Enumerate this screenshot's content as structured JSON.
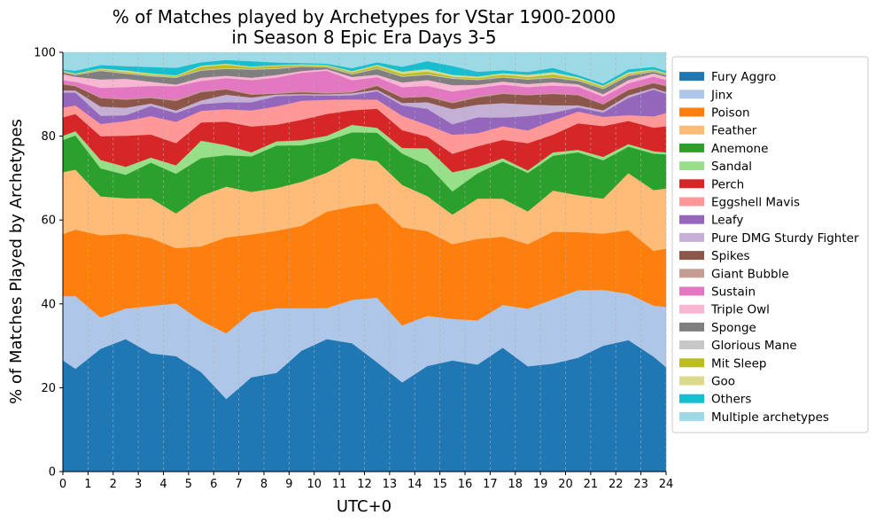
{
  "chart_data": {
    "type": "area",
    "stacked": true,
    "title": [
      "% of Matches played by Archetypes for VStar 1900-2000",
      "in Season 8 Epic Era Days 3-5"
    ],
    "xlabel": "UTC+0",
    "ylabel": "% of Matches Played by Archetypes",
    "xlim": [
      0,
      24
    ],
    "ylim": [
      0,
      100
    ],
    "x_ticks": [
      0,
      1,
      2,
      3,
      4,
      5,
      6,
      7,
      8,
      9,
      10,
      11,
      12,
      13,
      14,
      15,
      16,
      17,
      18,
      19,
      20,
      21,
      22,
      23,
      24
    ],
    "y_ticks": [
      0,
      20,
      40,
      60,
      80,
      100
    ],
    "grid": "vertical dashed",
    "legend_position": "right",
    "x": [
      0,
      0.5,
      1.5,
      2.5,
      3.5,
      4.5,
      5.5,
      6.5,
      7.5,
      8.5,
      9.5,
      10.5,
      11.5,
      12.5,
      13.5,
      14.5,
      15.5,
      16.5,
      17.5,
      18.5,
      19.5,
      20.5,
      21.5,
      22.5,
      23.5,
      24
    ],
    "series": [
      {
        "name": "Fury Aggro",
        "color": "#1f77b4",
        "values": [
          26,
          24,
          29,
          31.6,
          28.2,
          27.6,
          24,
          18,
          23.4,
          23.2,
          28.5,
          31.6,
          30.8,
          26.4,
          22.2,
          25.2,
          27.8,
          27,
          31,
          26.3,
          25.7,
          27.1,
          29.5,
          31.8,
          28.4,
          26
        ]
      },
      {
        "name": "Jinx",
        "color": "#aec7e8",
        "values": [
          15,
          17,
          7.4,
          7.3,
          11.3,
          12.6,
          12.4,
          16.3,
          16.1,
          15.2,
          10,
          7.4,
          10.4,
          15.6,
          14.2,
          12,
          10.4,
          11.2,
          10.7,
          14.4,
          15.3,
          16.1,
          13.1,
          11.2,
          12.6,
          15
        ]
      },
      {
        "name": "Poison",
        "color": "#ff7f0e",
        "values": [
          14.5,
          15.5,
          19.4,
          17.8,
          16.2,
          13.2,
          17.9,
          23.8,
          19.3,
          18.2,
          19.4,
          23,
          22.4,
          22.8,
          24.4,
          20.2,
          18.7,
          20.5,
          17.1,
          16.1,
          16.1,
          13.8,
          13.2,
          15.4,
          13.5,
          14.5
        ]
      },
      {
        "name": "Feather",
        "color": "#ffbb78",
        "values": [
          14.5,
          14,
          9.2,
          8.5,
          9.5,
          8.3,
          12.2,
          12.6,
          10.6,
          10,
          10.4,
          9.3,
          11.6,
          10.2,
          10.6,
          8.4,
          7.4,
          10.2,
          9.5,
          8.2,
          9.8,
          8.8,
          8.2,
          13.8,
          15,
          15
        ]
      },
      {
        "name": "Anemone",
        "color": "#2ca02c",
        "values": [
          7.5,
          8,
          6.6,
          5.6,
          8.5,
          9.5,
          9.1,
          7.8,
          8.8,
          10,
          8.6,
          7.6,
          6.2,
          6.8,
          7.8,
          7.4,
          5.8,
          6.4,
          9.3,
          9.6,
          8.3,
          10.2,
          9,
          6.4,
          9,
          8.5
        ]
      },
      {
        "name": "Sandal",
        "color": "#98df8a",
        "values": [
          1,
          1,
          2,
          1.9,
          1.2,
          2,
          4.2,
          2.5,
          1,
          1,
          1.2,
          1.2,
          1.8,
          1.2,
          1.4,
          4,
          4.8,
          1.6,
          0.8,
          0.6,
          0.8,
          0.6,
          0.8,
          0.6,
          0.6,
          0.5
        ]
      },
      {
        "name": "Perch",
        "color": "#d62728",
        "values": [
          4.3,
          4,
          5.6,
          7.4,
          5.5,
          5.3,
          4.4,
          5.8,
          6.4,
          3.9,
          4.8,
          5.2,
          3.5,
          4.6,
          4.4,
          2.8,
          4.6,
          5.2,
          4.6,
          6.8,
          4.2,
          6.3,
          7.2,
          5.6,
          5.8,
          6.5
        ]
      },
      {
        "name": "Eggshell Mavis",
        "color": "#ff9896",
        "values": [
          2.3,
          2,
          2.9,
          3.5,
          4.4,
          5.1,
          2.8,
          3.1,
          4,
          4.3,
          4.5,
          3.4,
          2.6,
          2.2,
          3.6,
          2.8,
          4.8,
          3.3,
          3.4,
          3.2,
          3.4,
          2.8,
          2.2,
          1.4,
          2.8,
          3.3
        ]
      },
      {
        "name": "Leafy",
        "color": "#9467bd",
        "values": [
          3.5,
          3,
          1.9,
          1.4,
          2.4,
          2.1,
          1.6,
          1.7,
          2,
          2.4,
          1.3,
          1,
          1,
          2,
          2.6,
          3.8,
          2.6,
          4,
          2.2,
          3.6,
          1.8,
          1,
          1,
          4.2,
          6.6,
          4.8
        ]
      },
      {
        "name": "Pure DMG Sturdy Fighter",
        "color": "#c5b0d5",
        "values": [
          0.5,
          0.5,
          2.2,
          1.8,
          0.6,
          0.6,
          0.9,
          1.9,
          1.2,
          0.4,
          0.3,
          0.3,
          0.5,
          0.4,
          0.6,
          1.6,
          3.8,
          3.2,
          3.6,
          2.9,
          1.8,
          0.5,
          0.5,
          0.6,
          0.4,
          0.4
        ]
      },
      {
        "name": "Spikes",
        "color": "#8c564b",
        "values": [
          1.4,
          1,
          2,
          1.9,
          1.3,
          2.3,
          2,
          1.3,
          0.7,
          0.2,
          0.4,
          0.2,
          0.2,
          0.9,
          1.3,
          1.3,
          1.5,
          1.8,
          2.3,
          2.3,
          2.7,
          2.4,
          1.4,
          1.3,
          1.2,
          1.5
        ]
      },
      {
        "name": "Giant Bubble",
        "color": "#c49c94",
        "values": [
          0.2,
          0.2,
          0.2,
          0.2,
          0.3,
          0.3,
          0.3,
          0.2,
          0.2,
          0.2,
          0.2,
          0.2,
          0.2,
          0.3,
          0.2,
          0.2,
          0.3,
          0.4,
          0.3,
          0.2,
          0.2,
          0.2,
          0.2,
          0.2,
          0.2,
          0.3
        ]
      },
      {
        "name": "Sustain",
        "color": "#e377c2",
        "values": [
          0.8,
          0.8,
          2.2,
          2.8,
          2.6,
          3.2,
          2.4,
          2.6,
          3.4,
          3.6,
          4.4,
          5.2,
          2.7,
          1.8,
          2.4,
          2.4,
          2.6,
          2,
          2,
          1.8,
          1.8,
          1.8,
          1.6,
          1.4,
          1.4,
          1.2
        ]
      },
      {
        "name": "Triple Owl",
        "color": "#f7b6d2",
        "values": [
          1.4,
          1.2,
          2,
          2,
          1,
          0.4,
          0.8,
          0.6,
          0.6,
          0.6,
          0.4,
          0.4,
          0.8,
          0.6,
          1.2,
          1.4,
          1.6,
          0.8,
          0.8,
          0.8,
          0.8,
          0.6,
          0.6,
          0.8,
          0.8,
          0.8
        ]
      },
      {
        "name": "Sponge",
        "color": "#7f7f7f",
        "values": [
          0.4,
          0.4,
          2,
          1.2,
          1.3,
          1.6,
          1.7,
          1.7,
          2,
          1.4,
          1,
          0.4,
          0.6,
          1.4,
          1.4,
          1.2,
          1.6,
          1.2,
          1,
          1.1,
          1,
          0.8,
          1.2,
          1,
          0.4,
          0.4
        ]
      },
      {
        "name": "Glorious Mane",
        "color": "#c7c7c7",
        "values": [
          0.2,
          0.2,
          0.2,
          0.2,
          0.2,
          0.2,
          0.2,
          0.2,
          0.2,
          0.2,
          0.2,
          0.2,
          0.2,
          0.2,
          0.2,
          0.2,
          0.2,
          0.2,
          0.2,
          0.2,
          0.2,
          0.2,
          0.2,
          0.2,
          0.2,
          0.2
        ]
      },
      {
        "name": "Mit Sleep",
        "color": "#bcbd22",
        "values": [
          0.1,
          0.1,
          0.2,
          0.2,
          0.2,
          0.2,
          0.7,
          0.8,
          0.4,
          0.5,
          0.2,
          0.2,
          0.3,
          0.5,
          0.5,
          0.6,
          0.3,
          0.3,
          0.5,
          0.4,
          0.6,
          0.3,
          0.3,
          0.3,
          0.2,
          0.2
        ]
      },
      {
        "name": "Goo",
        "color": "#dbdb8d",
        "values": [
          0.1,
          0.1,
          0.2,
          0.4,
          0.3,
          0.2,
          0.3,
          0.3,
          0.2,
          0.2,
          0.2,
          0.2,
          0.3,
          0.3,
          0.6,
          0.6,
          0.5,
          0.4,
          0.4,
          0.6,
          0.6,
          0.4,
          0.3,
          0.4,
          0.2,
          0.2
        ]
      },
      {
        "name": "Others",
        "color": "#17becf",
        "values": [
          0.3,
          0.6,
          0.8,
          1,
          1.5,
          1.8,
          0.8,
          0.9,
          1.3,
          0.6,
          0.3,
          0.3,
          0.7,
          0.6,
          1.2,
          1.9,
          2.2,
          1.2,
          0.7,
          0.7,
          1,
          0.5,
          0.5,
          0.7,
          0.6,
          0.5
        ]
      },
      {
        "name": "Multiple archetypes",
        "color": "#9edae5",
        "values": [
          4,
          4.3,
          3.0,
          3.3,
          3.5,
          3.7,
          2.4,
          1.9,
          2.2,
          2.4,
          2.5,
          2.7,
          3.8,
          2.4,
          3.6,
          2.1,
          3.4,
          4.9,
          4.5,
          4.9,
          3.7,
          5.4,
          7.3,
          4.1,
          3.6,
          4.6
        ]
      }
    ]
  }
}
